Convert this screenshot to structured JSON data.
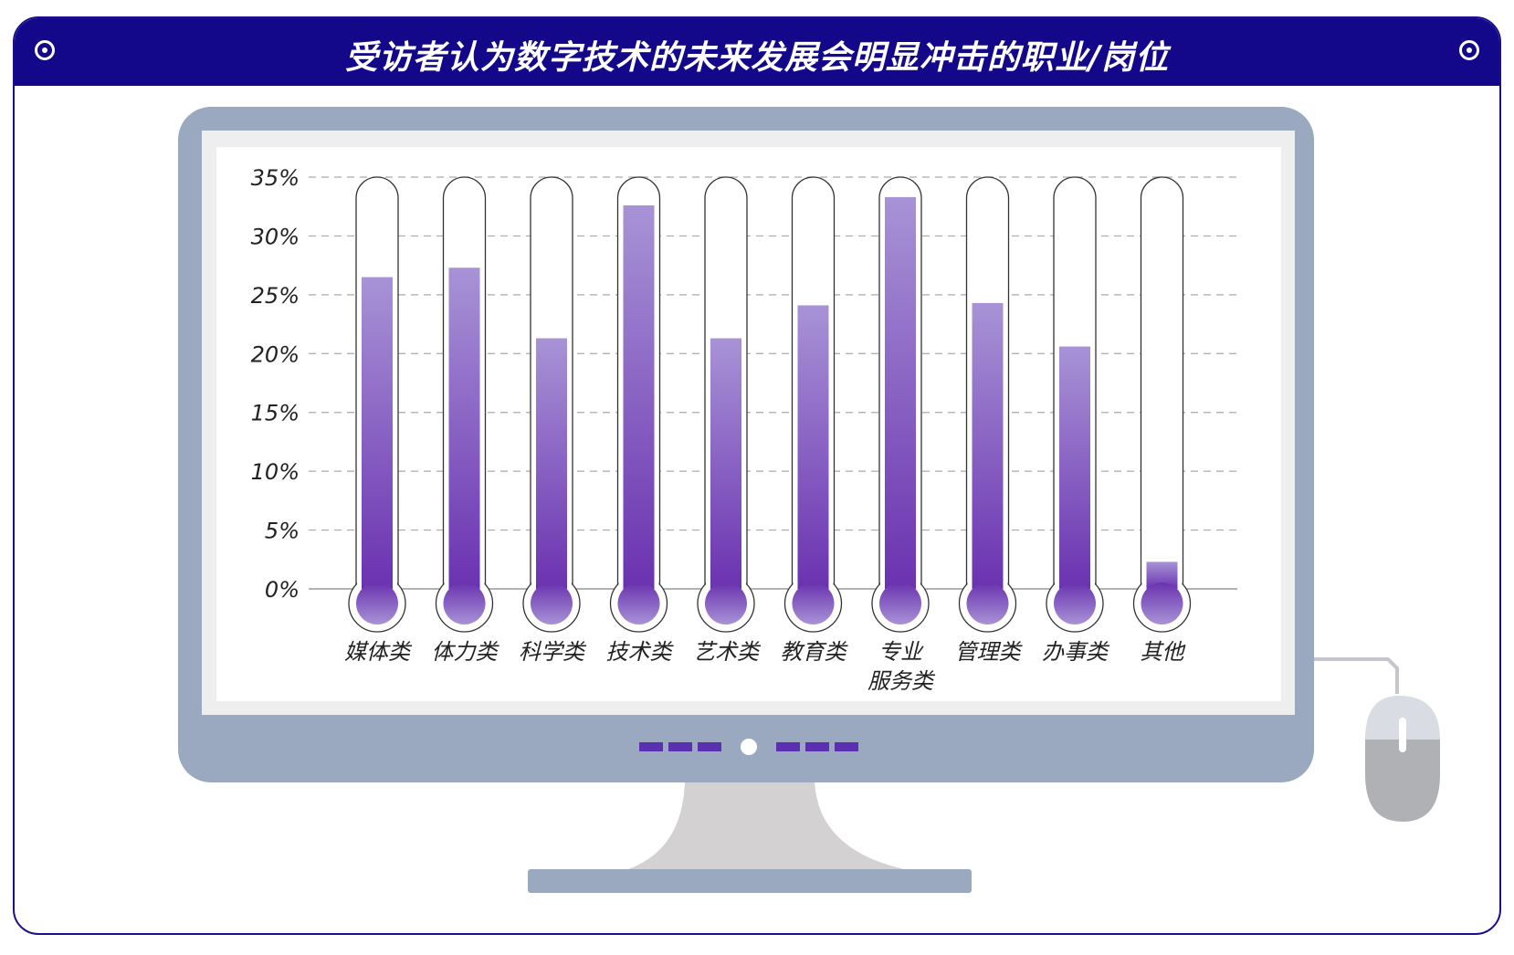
{
  "header": {
    "title": "受访者认为数字技术的未来发展会明显冲击的职业/岗位"
  },
  "chart_data": {
    "type": "bar",
    "title": "受访者认为数字技术的未来发展会明显冲击的职业/岗位",
    "categories": [
      "媒体类",
      "体力类",
      "科学类",
      "技术类",
      "艺术类",
      "教育类",
      "专业\n服务类",
      "管理类",
      "办事类",
      "其他"
    ],
    "values": [
      26.5,
      27.3,
      21.3,
      32.6,
      21.3,
      24.1,
      33.3,
      24.3,
      20.6,
      2.3
    ],
    "ylim": [
      0,
      35
    ],
    "yticks": [
      0,
      5,
      10,
      15,
      20,
      25,
      30,
      35
    ],
    "ytick_labels": [
      "0%",
      "5%",
      "10%",
      "15%",
      "20%",
      "25%",
      "30%",
      "35%"
    ],
    "xlabel": "",
    "ylabel": "",
    "grid": true,
    "bar_color_top": "#a893d6",
    "bar_color_bottom": "#6a32b0"
  },
  "colors": {
    "header": "#14088a",
    "monitor_frame": "#9aa9bf",
    "screen_bezel": "#eeeeee",
    "stand": "#d3d1d2"
  },
  "icons": [
    "target-icon-left",
    "target-icon-right"
  ]
}
